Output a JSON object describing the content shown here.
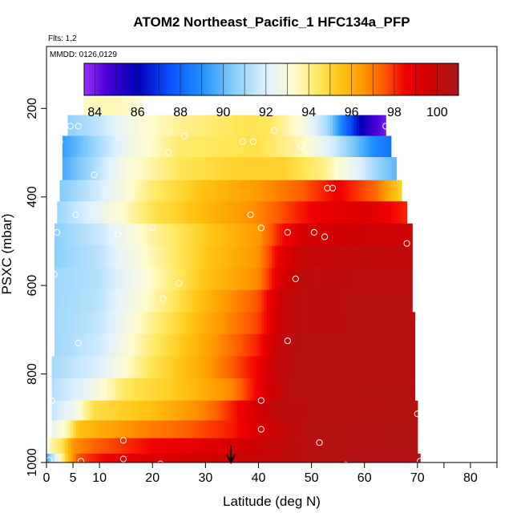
{
  "chart_data": {
    "type": "heatmap",
    "title": "ATOM2 Northeast_Pacific_1 HFC134a_PFP",
    "flights_note": "Flts: 1,2",
    "date_note": "MMDD: 0126,0129",
    "xlabel": "Latitude (deg N)",
    "ylabel": "PSXC (mbar)",
    "xlim": [
      0,
      85
    ],
    "ylim": [
      1000,
      60
    ],
    "x_ticks": [
      0,
      5,
      10,
      20,
      30,
      40,
      50,
      60,
      70,
      80
    ],
    "x_minor_ticks": [
      75,
      85
    ],
    "y_ticks": [
      200,
      400,
      600,
      800,
      1000
    ],
    "colorbar": {
      "range": [
        83.5,
        101
      ],
      "ticks": [
        84,
        86,
        88,
        90,
        92,
        94,
        96,
        98,
        100
      ],
      "stops": [
        {
          "v": 83.5,
          "c": "#9b30ff"
        },
        {
          "v": 84.5,
          "c": "#4b00d8"
        },
        {
          "v": 86,
          "c": "#0000b8"
        },
        {
          "v": 87.5,
          "c": "#0a50ff"
        },
        {
          "v": 89,
          "c": "#1e90ff"
        },
        {
          "v": 90.5,
          "c": "#87cefa"
        },
        {
          "v": 92,
          "c": "#dff1ff"
        },
        {
          "v": 93.3,
          "c": "#fffbd0"
        },
        {
          "v": 94.5,
          "c": "#ffe75a"
        },
        {
          "v": 95.5,
          "c": "#ffc412"
        },
        {
          "v": 96.5,
          "c": "#ff9a00"
        },
        {
          "v": 97.5,
          "c": "#ff5a00"
        },
        {
          "v": 98.5,
          "c": "#f20000"
        },
        {
          "v": 99.5,
          "c": "#d00000"
        },
        {
          "v": 101,
          "c": "#a81a1a"
        }
      ]
    },
    "profile_rows": [
      {
        "p0": 175,
        "p1": 215,
        "lat0": 7,
        "lat1": 18,
        "knots": [
          [
            7,
            93.4
          ],
          [
            12,
            93.6
          ],
          [
            17,
            93.3
          ]
        ]
      },
      {
        "p0": 215,
        "p1": 262,
        "lat0": 4,
        "lat1": 64,
        "knots": [
          [
            4,
            90.6
          ],
          [
            10,
            91.5
          ],
          [
            17,
            93
          ],
          [
            25,
            93.9
          ],
          [
            37,
            94.6
          ],
          [
            42,
            94.5
          ],
          [
            48,
            93.1
          ],
          [
            53,
            91
          ],
          [
            56,
            88.5
          ],
          [
            59,
            86.2
          ],
          [
            62,
            84.6
          ],
          [
            64,
            84
          ]
        ]
      },
      {
        "p0": 262,
        "p1": 310,
        "lat0": 3,
        "lat1": 65,
        "knots": [
          [
            3,
            89.3
          ],
          [
            8,
            90.5
          ],
          [
            15,
            92.5
          ],
          [
            25,
            94.3
          ],
          [
            40,
            94.7
          ],
          [
            48,
            93.6
          ],
          [
            54,
            91.8
          ],
          [
            58,
            90.3
          ],
          [
            62,
            88.8
          ],
          [
            65,
            88.3
          ]
        ]
      },
      {
        "p0": 310,
        "p1": 362,
        "lat0": 3,
        "lat1": 66,
        "knots": [
          [
            3,
            89.6
          ],
          [
            8,
            90.8
          ],
          [
            15,
            93
          ],
          [
            25,
            94.5
          ],
          [
            35,
            95.1
          ],
          [
            45,
            95.1
          ],
          [
            52,
            94.1
          ],
          [
            58,
            92.4
          ],
          [
            63,
            90.6
          ],
          [
            66,
            89.9
          ]
        ]
      },
      {
        "p0": 362,
        "p1": 410,
        "lat0": 2.5,
        "lat1": 67,
        "knots": [
          [
            2.5,
            90.4
          ],
          [
            10,
            91.8
          ],
          [
            20,
            94.3
          ],
          [
            30,
            95.6
          ],
          [
            40,
            96.5
          ],
          [
            48,
            97.4
          ],
          [
            55,
            98.6
          ],
          [
            62,
            97.3
          ],
          [
            67,
            95.1
          ]
        ]
      },
      {
        "p0": 410,
        "p1": 460,
        "lat0": 2,
        "lat1": 68,
        "knots": [
          [
            2,
            90.8
          ],
          [
            10,
            92.4
          ],
          [
            20,
            94.6
          ],
          [
            30,
            95.8
          ],
          [
            40,
            96.8
          ],
          [
            46,
            97.9
          ],
          [
            52,
            98.8
          ],
          [
            60,
            99.1
          ],
          [
            68,
            98.1
          ]
        ]
      },
      {
        "p0": 460,
        "p1": 510,
        "lat0": 1.5,
        "lat1": 69,
        "knots": [
          [
            1.5,
            90.6
          ],
          [
            10,
            91.6
          ],
          [
            20,
            93.8
          ],
          [
            30,
            95.3
          ],
          [
            40,
            96.5
          ],
          [
            44,
            98.2
          ],
          [
            48,
            99.3
          ],
          [
            60,
            99.6
          ],
          [
            69,
            99.6
          ]
        ]
      },
      {
        "p0": 510,
        "p1": 560,
        "lat0": 1.5,
        "lat1": 69,
        "knots": [
          [
            1.5,
            90.6
          ],
          [
            10,
            91.4
          ],
          [
            20,
            93.6
          ],
          [
            30,
            95.4
          ],
          [
            40,
            96.6
          ],
          [
            44,
            98.8
          ],
          [
            48,
            99.8
          ],
          [
            60,
            100.1
          ],
          [
            69,
            100
          ]
        ]
      },
      {
        "p0": 560,
        "p1": 610,
        "lat0": 1.5,
        "lat1": 69,
        "knots": [
          [
            1.5,
            90.9
          ],
          [
            10,
            91.3
          ],
          [
            20,
            93.4
          ],
          [
            30,
            95.5
          ],
          [
            40,
            96.8
          ],
          [
            44,
            99.1
          ],
          [
            48,
            100.2
          ],
          [
            60,
            100.3
          ],
          [
            69,
            100.3
          ]
        ]
      },
      {
        "p0": 610,
        "p1": 660,
        "lat0": 1.5,
        "lat1": 69,
        "knots": [
          [
            1.5,
            90.9
          ],
          [
            10,
            91.4
          ],
          [
            20,
            93.6
          ],
          [
            30,
            95.8
          ],
          [
            40,
            97.6
          ],
          [
            44,
            99.6
          ],
          [
            48,
            100.3
          ],
          [
            69,
            100.4
          ]
        ]
      },
      {
        "p0": 660,
        "p1": 710,
        "lat0": 1.5,
        "lat1": 69.5,
        "knots": [
          [
            1.5,
            90.9
          ],
          [
            10,
            91.5
          ],
          [
            20,
            94
          ],
          [
            30,
            96
          ],
          [
            40,
            97.8
          ],
          [
            44,
            99.7
          ],
          [
            48,
            100.3
          ],
          [
            69.5,
            100.4
          ]
        ]
      },
      {
        "p0": 710,
        "p1": 760,
        "lat0": 1.5,
        "lat1": 69.5,
        "knots": [
          [
            1.5,
            90.9
          ],
          [
            10,
            91.7
          ],
          [
            20,
            94.3
          ],
          [
            30,
            96.2
          ],
          [
            40,
            98.2
          ],
          [
            44,
            100
          ],
          [
            48,
            100.4
          ],
          [
            69.5,
            100.4
          ]
        ]
      },
      {
        "p0": 760,
        "p1": 810,
        "lat0": 1,
        "lat1": 69.5,
        "knots": [
          [
            1,
            91
          ],
          [
            10,
            92
          ],
          [
            20,
            94.6
          ],
          [
            30,
            96.3
          ],
          [
            40,
            98.6
          ],
          [
            44,
            100.1
          ],
          [
            48,
            100.4
          ],
          [
            69.5,
            100.4
          ]
        ]
      },
      {
        "p0": 810,
        "p1": 860,
        "lat0": 1,
        "lat1": 69.5,
        "knots": [
          [
            1,
            91.2
          ],
          [
            8,
            92.4
          ],
          [
            15,
            94.5
          ],
          [
            25,
            95.4
          ],
          [
            35,
            96.8
          ],
          [
            42,
            99.4
          ],
          [
            46,
            100.4
          ],
          [
            69.5,
            100.5
          ]
        ]
      },
      {
        "p0": 860,
        "p1": 905,
        "lat0": 1,
        "lat1": 70,
        "knots": [
          [
            1,
            91.5
          ],
          [
            5,
            92.5
          ],
          [
            9,
            94.8
          ],
          [
            20,
            95.6
          ],
          [
            30,
            96.9
          ],
          [
            38,
            98.9
          ],
          [
            44,
            100.3
          ],
          [
            70,
            100.5
          ]
        ]
      },
      {
        "p0": 905,
        "p1": 945,
        "lat0": 1,
        "lat1": 70,
        "knots": [
          [
            1,
            92.4
          ],
          [
            4,
            93.6
          ],
          [
            6,
            95.6
          ],
          [
            15,
            96.6
          ],
          [
            25,
            97.3
          ],
          [
            35,
            98.2
          ],
          [
            42,
            99.6
          ],
          [
            50,
            100.5
          ],
          [
            70,
            100.6
          ]
        ]
      },
      {
        "p0": 945,
        "p1": 980,
        "lat0": 0.5,
        "lat1": 70,
        "knots": [
          [
            0.5,
            93.5
          ],
          [
            3,
            94.6
          ],
          [
            5,
            96.6
          ],
          [
            10,
            97.5
          ],
          [
            20,
            98.5
          ],
          [
            30,
            99
          ],
          [
            40,
            99.7
          ],
          [
            50,
            100.5
          ],
          [
            70,
            100.6
          ]
        ]
      },
      {
        "p0": 980,
        "p1": 1010,
        "lat0": 0,
        "lat1": 70.5,
        "knots": [
          [
            0,
            89.5
          ],
          [
            2,
            92.5
          ],
          [
            4,
            95.5
          ],
          [
            6,
            97.6
          ],
          [
            12,
            98.7
          ],
          [
            20,
            99.1
          ],
          [
            30,
            99.4
          ],
          [
            40,
            99.8
          ],
          [
            50,
            100.4
          ],
          [
            70.5,
            100.6
          ]
        ]
      }
    ],
    "sample_points": [
      [
        18,
        198
      ],
      [
        4.5,
        240
      ],
      [
        6,
        240
      ],
      [
        2.5,
        275
      ],
      [
        26,
        262
      ],
      [
        23,
        300
      ],
      [
        37,
        275
      ],
      [
        39,
        275
      ],
      [
        43,
        250
      ],
      [
        48,
        285
      ],
      [
        64,
        240
      ],
      [
        9,
        350
      ],
      [
        53,
        380
      ],
      [
        54,
        380
      ],
      [
        38.5,
        440
      ],
      [
        5.5,
        440
      ],
      [
        40.5,
        470
      ],
      [
        20,
        470
      ],
      [
        2,
        480
      ],
      [
        13.5,
        485
      ],
      [
        45.5,
        480
      ],
      [
        50.5,
        480
      ],
      [
        52.5,
        490
      ],
      [
        68,
        505
      ],
      [
        47,
        585
      ],
      [
        1.5,
        575
      ],
      [
        25,
        595
      ],
      [
        22,
        630
      ],
      [
        6,
        730
      ],
      [
        45.5,
        725
      ],
      [
        1,
        860
      ],
      [
        40.5,
        860
      ],
      [
        70,
        890
      ],
      [
        40.5,
        925
      ],
      [
        14.5,
        950
      ],
      [
        51.5,
        955
      ],
      [
        0.5,
        995
      ],
      [
        14.5,
        992
      ],
      [
        6.5,
        997
      ],
      [
        21.5,
        1003
      ],
      [
        46,
        1012
      ],
      [
        52,
        1010
      ],
      [
        56.5,
        1005
      ],
      [
        70.5,
        997
      ]
    ],
    "marker": {
      "lat": 34.8
    }
  }
}
